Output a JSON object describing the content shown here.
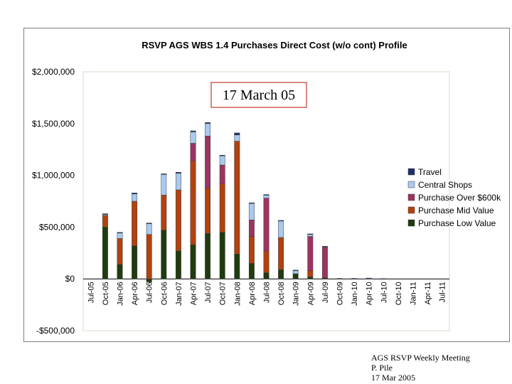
{
  "chart_data": {
    "type": "bar",
    "stacked": true,
    "title": "RSVP AGS WBS 1.4 Purchases Direct Cost (w/o cont) Profile",
    "annotation": "17 March 05",
    "ylim": [
      -500000,
      2000000
    ],
    "yticks": [
      {
        "value": 2000000,
        "label": "$2,000,000"
      },
      {
        "value": 1500000,
        "label": "$1,500,000"
      },
      {
        "value": 1000000,
        "label": "$1,000,000"
      },
      {
        "value": 500000,
        "label": "$500,000"
      },
      {
        "value": 0,
        "label": "$0"
      },
      {
        "value": -500000,
        "label": "-$500,000"
      }
    ],
    "categories": [
      "Jul-05",
      "Oct-05",
      "Jan-06",
      "Apr-06",
      "Jul-06",
      "Oct-06",
      "Jan-07",
      "Apr-07",
      "Jul-07",
      "Oct-07",
      "Jan-08",
      "Apr-08",
      "Jul-08",
      "Oct-08",
      "Jan-09",
      "Apr-09",
      "Jul-09",
      "Oct-09",
      "Jan-10",
      "Apr-10",
      "Jul-10",
      "Oct-10",
      "Jan-11",
      "Apr-11",
      "Jul-11"
    ],
    "legend_position": "right",
    "series": [
      {
        "name": "Purchase Low Value",
        "color": "#1f3b0f",
        "values": [
          0,
          500000,
          140000,
          320000,
          -30000,
          470000,
          270000,
          330000,
          440000,
          450000,
          240000,
          150000,
          60000,
          90000,
          50000,
          20000,
          10000,
          0,
          0,
          0,
          0,
          0,
          0,
          0,
          0
        ]
      },
      {
        "name": "Purchase Mid Value",
        "color": "#b2410f",
        "values": [
          0,
          115000,
          250000,
          430000,
          430000,
          340000,
          590000,
          810000,
          440000,
          470000,
          1090000,
          260000,
          210000,
          310000,
          0,
          60000,
          0,
          0,
          0,
          0,
          0,
          0,
          0,
          0,
          0
        ]
      },
      {
        "name": "Purchase Over $600k",
        "color": "#9b3461",
        "values": [
          0,
          0,
          0,
          0,
          0,
          0,
          0,
          170000,
          500000,
          180000,
          0,
          160000,
          510000,
          0,
          0,
          330000,
          300000,
          0,
          0,
          0,
          0,
          0,
          0,
          0,
          0
        ]
      },
      {
        "name": "Central Shops",
        "color": "#a9c9ef",
        "values": [
          0,
          10000,
          55000,
          70000,
          105000,
          200000,
          160000,
          110000,
          120000,
          90000,
          60000,
          160000,
          30000,
          160000,
          30000,
          20000,
          0,
          0,
          0,
          0,
          0,
          0,
          0,
          0,
          0
        ]
      },
      {
        "name": "Travel",
        "color": "#1f2f6b",
        "values": [
          0,
          5000,
          5000,
          10000,
          5000,
          5000,
          10000,
          10000,
          10000,
          5000,
          20000,
          5000,
          5000,
          5000,
          5000,
          5000,
          5000,
          5000,
          5000,
          8000,
          3000,
          0,
          0,
          0,
          0
        ]
      }
    ]
  },
  "footer": {
    "line1": "AGS RSVP Weekly Meeting",
    "line2": "P. Pile",
    "line3": "17 Mar 2005"
  }
}
